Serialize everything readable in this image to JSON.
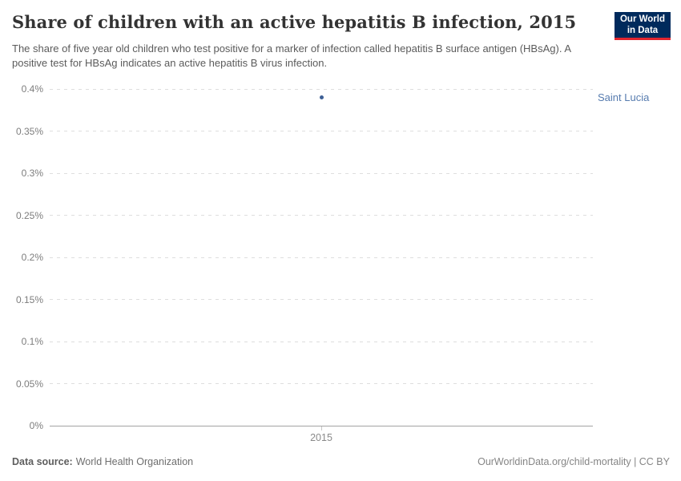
{
  "header": {
    "title": "Share of children with an active hepatitis B infection, 2015",
    "subtitle": "The share of five year old children who test positive for a marker of infection called hepatitis B surface antigen (HBsAg). A positive test for HBsAg indicates an active hepatitis B virus infection.",
    "logo": {
      "line1": "Our World",
      "line2": "in Data"
    }
  },
  "chart_data": {
    "type": "scatter",
    "title": "Share of children with an active hepatitis B infection, 2015",
    "x": [
      2015
    ],
    "series": [
      {
        "name": "Saint Lucia",
        "values": [
          0.39
        ],
        "color": "#3d5f95",
        "label_color": "#577caf"
      }
    ],
    "xlabel": "",
    "ylabel": "",
    "unit": "%",
    "ylim": [
      0,
      0.4
    ],
    "yticks": [
      0,
      0.05,
      0.1,
      0.15,
      0.2,
      0.25,
      0.3,
      0.35,
      0.4
    ],
    "ytick_labels": [
      "0%",
      "0.05%",
      "0.1%",
      "0.15%",
      "0.2%",
      "0.25%",
      "0.3%",
      "0.35%",
      "0.4%"
    ],
    "xtick_labels": [
      "2015"
    ],
    "grid": true,
    "legend_position": "entity-label-right-of-plot"
  },
  "footer": {
    "source_label": "Data source:",
    "source_value": "World Health Organization",
    "credit": "OurWorldinData.org/child-mortality | CC BY"
  },
  "colors": {
    "title": "#333333",
    "subtitle": "#5b5b5b",
    "tick_label": "#7d7d7d",
    "gridline": "#dedede",
    "axis_line": "#a3a3a3",
    "point": "#3d5f95",
    "entity_label": "#577caf",
    "logo_bg": "#002a5c",
    "logo_stripe": "#e0252f",
    "footer_text": "#6e6e6e",
    "credit_text": "#858585"
  }
}
